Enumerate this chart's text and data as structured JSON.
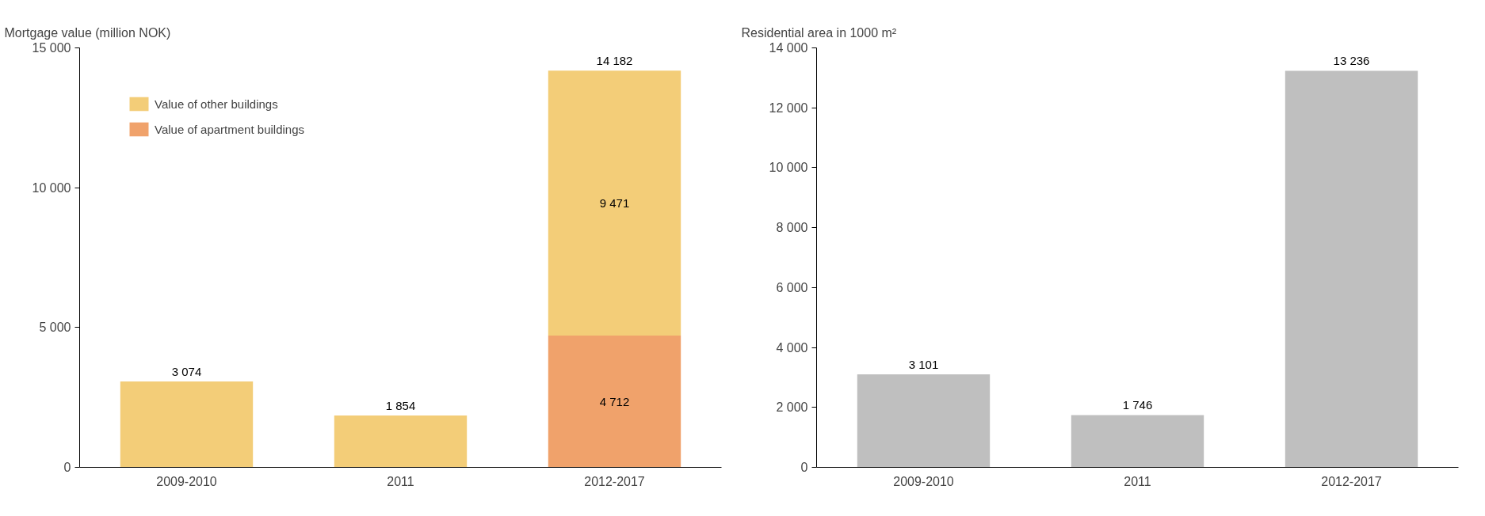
{
  "chart_data": [
    {
      "type": "bar",
      "ylabel": "Mortgage value (million NOK)",
      "categories": [
        "2009-2010",
        "2011",
        "2012-2017"
      ],
      "stacked": true,
      "legend": "top left",
      "series": [
        {
          "name": "Value of apartment buildings",
          "color": "#f0a26b",
          "values": [
            0,
            0,
            4712
          ],
          "value_labels": [
            null,
            null,
            "4 712"
          ]
        },
        {
          "name": "Value of other buildings",
          "color": "#f3cd78",
          "values": [
            3074,
            1854,
            9471
          ],
          "value_labels": [
            null,
            null,
            "9 471"
          ]
        }
      ],
      "totals": [
        "3 074",
        "1 854",
        "14 182"
      ],
      "ylim": [
        0,
        15000
      ],
      "yticks": [
        {
          "value": 0,
          "label": "0"
        },
        {
          "value": 5000,
          "label": "5 000"
        },
        {
          "value": 10000,
          "label": "10 000"
        },
        {
          "value": 15000,
          "label": "15 000"
        }
      ],
      "grid": false
    },
    {
      "type": "bar",
      "ylabel": "Residential area in 1000 m²",
      "categories": [
        "2009-2010",
        "2011",
        "2012-2017"
      ],
      "series": [
        {
          "color": "#bfbfbf",
          "values": [
            3101,
            1746,
            13236
          ],
          "value_labels": [
            "3 101",
            "1 746",
            "13 236"
          ]
        }
      ],
      "ylim": [
        0,
        14000
      ],
      "yticks": [
        {
          "value": 0,
          "label": "0"
        },
        {
          "value": 2000,
          "label": "2 000"
        },
        {
          "value": 4000,
          "label": "4 000"
        },
        {
          "value": 6000,
          "label": "6 000"
        },
        {
          "value": 8000,
          "label": "8 000"
        },
        {
          "value": 10000,
          "label": "10 000"
        },
        {
          "value": 12000,
          "label": "12 000"
        },
        {
          "value": 14000,
          "label": "14 000"
        }
      ],
      "grid": false
    }
  ]
}
